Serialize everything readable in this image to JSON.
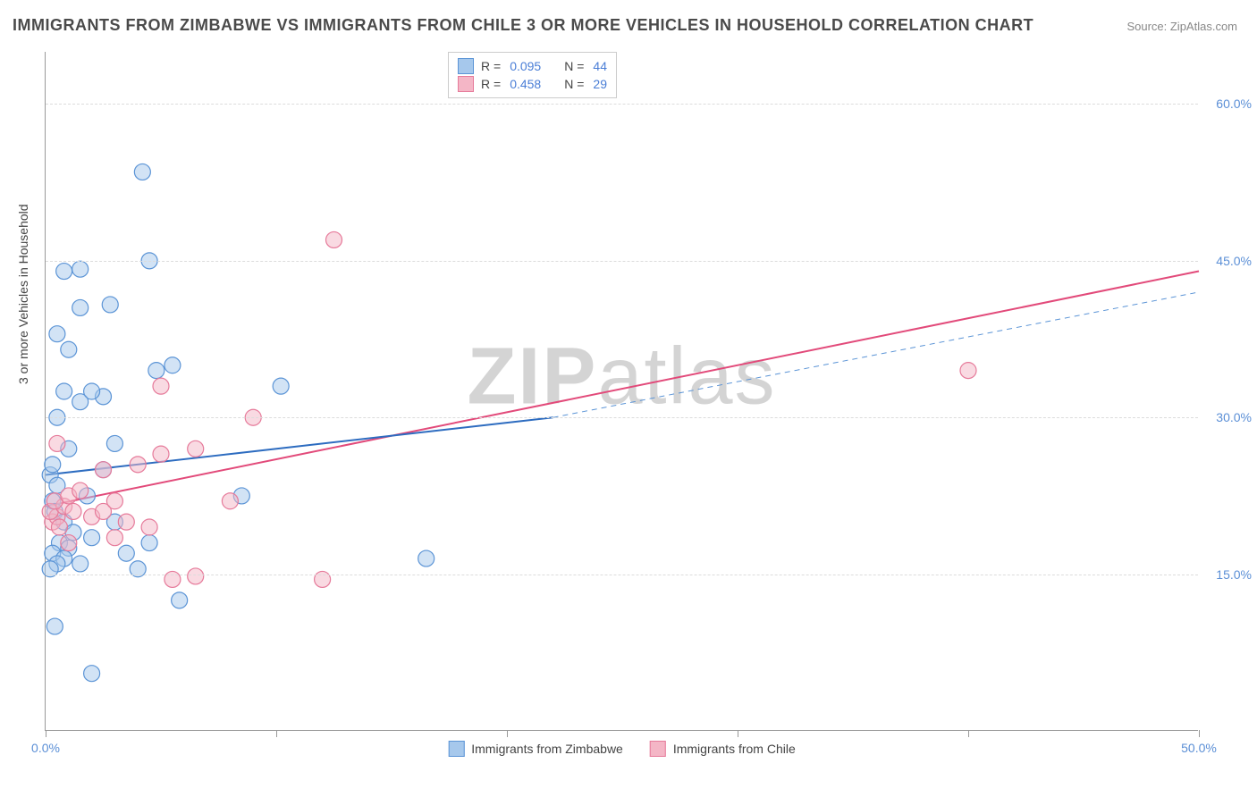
{
  "title": "IMMIGRANTS FROM ZIMBABWE VS IMMIGRANTS FROM CHILE 3 OR MORE VEHICLES IN HOUSEHOLD CORRELATION CHART",
  "source": "Source: ZipAtlas.com",
  "y_axis_label": "3 or more Vehicles in Household",
  "watermark_zip": "ZIP",
  "watermark_atlas": "atlas",
  "chart": {
    "type": "scatter",
    "xlim": [
      0,
      50
    ],
    "ylim": [
      0,
      65
    ],
    "x_ticks": [
      0,
      10,
      20,
      30,
      40,
      50
    ],
    "x_tick_labels": {
      "0": "0.0%",
      "50": "50.0%"
    },
    "y_grid": [
      15,
      30,
      45,
      60
    ],
    "y_tick_labels": {
      "15": "15.0%",
      "30": "30.0%",
      "45": "45.0%",
      "60": "60.0%"
    },
    "background_color": "#ffffff",
    "grid_color": "#dcdcdc",
    "axis_color": "#999999",
    "series": [
      {
        "name": "Immigrants from Zimbabwe",
        "color_fill": "#a6c8ec",
        "color_stroke": "#5b94d6",
        "marker_radius": 9,
        "fill_opacity": 0.5,
        "r_label": "R =",
        "r_value": "0.095",
        "n_label": "N =",
        "n_value": "44",
        "trend_solid": {
          "x1": 0,
          "y1": 24.5,
          "x2": 22,
          "y2": 30,
          "color": "#2d6cc0",
          "width": 2
        },
        "trend_dashed": {
          "x1": 22,
          "y1": 30,
          "x2": 50,
          "y2": 42,
          "color": "#5b94d6",
          "width": 1,
          "dash": "6,5"
        },
        "points": [
          [
            0.2,
            24.5
          ],
          [
            0.5,
            23.5
          ],
          [
            0.3,
            22.0
          ],
          [
            0.4,
            21.0
          ],
          [
            0.8,
            20.0
          ],
          [
            1.2,
            19.0
          ],
          [
            0.6,
            18.0
          ],
          [
            1.0,
            17.5
          ],
          [
            0.3,
            17.0
          ],
          [
            0.8,
            16.5
          ],
          [
            0.5,
            16.0
          ],
          [
            1.5,
            16.0
          ],
          [
            0.2,
            15.5
          ],
          [
            2.0,
            18.5
          ],
          [
            3.5,
            17.0
          ],
          [
            4.5,
            18.0
          ],
          [
            1.8,
            22.5
          ],
          [
            2.5,
            25.0
          ],
          [
            0.3,
            25.5
          ],
          [
            1.0,
            27.0
          ],
          [
            3.0,
            27.5
          ],
          [
            0.5,
            30.0
          ],
          [
            1.5,
            31.5
          ],
          [
            2.5,
            32.0
          ],
          [
            0.8,
            32.5
          ],
          [
            4.8,
            34.5
          ],
          [
            5.5,
            35.0
          ],
          [
            1.0,
            36.5
          ],
          [
            0.5,
            38.0
          ],
          [
            1.5,
            40.5
          ],
          [
            2.8,
            40.8
          ],
          [
            0.8,
            44.0
          ],
          [
            1.5,
            44.2
          ],
          [
            4.5,
            45.0
          ],
          [
            4.2,
            53.5
          ],
          [
            0.4,
            10.0
          ],
          [
            2.0,
            5.5
          ],
          [
            5.8,
            12.5
          ],
          [
            8.5,
            22.5
          ],
          [
            10.2,
            33.0
          ],
          [
            16.5,
            16.5
          ],
          [
            4.0,
            15.5
          ],
          [
            3.0,
            20.0
          ],
          [
            2.0,
            32.5
          ]
        ]
      },
      {
        "name": "Immigrants from Chile",
        "color_fill": "#f4b6c6",
        "color_stroke": "#e67a9a",
        "marker_radius": 9,
        "fill_opacity": 0.5,
        "r_label": "R =",
        "r_value": "0.458",
        "n_label": "N =",
        "n_value": "29",
        "trend_solid": {
          "x1": 0,
          "y1": 21.5,
          "x2": 50,
          "y2": 44,
          "color": "#e24a7a",
          "width": 2
        },
        "points": [
          [
            0.3,
            20.0
          ],
          [
            0.5,
            20.5
          ],
          [
            0.2,
            21.0
          ],
          [
            0.8,
            21.5
          ],
          [
            1.2,
            21.0
          ],
          [
            0.4,
            22.0
          ],
          [
            1.0,
            22.5
          ],
          [
            1.5,
            23.0
          ],
          [
            0.6,
            19.5
          ],
          [
            2.0,
            20.5
          ],
          [
            2.5,
            21.0
          ],
          [
            3.0,
            22.0
          ],
          [
            1.0,
            18.0
          ],
          [
            0.5,
            27.5
          ],
          [
            2.5,
            25.0
          ],
          [
            4.0,
            25.5
          ],
          [
            5.0,
            26.5
          ],
          [
            6.5,
            27.0
          ],
          [
            3.5,
            20.0
          ],
          [
            5.5,
            14.5
          ],
          [
            6.5,
            14.8
          ],
          [
            5.0,
            33.0
          ],
          [
            9.0,
            30.0
          ],
          [
            8.0,
            22.0
          ],
          [
            12.0,
            14.5
          ],
          [
            12.5,
            47.0
          ],
          [
            40.0,
            34.5
          ],
          [
            3.0,
            18.5
          ],
          [
            4.5,
            19.5
          ]
        ]
      }
    ]
  },
  "legend_bottom": [
    {
      "label": "Immigrants from Zimbabwe",
      "fill": "#a6c8ec",
      "stroke": "#5b94d6"
    },
    {
      "label": "Immigrants from Chile",
      "fill": "#f4b6c6",
      "stroke": "#e67a9a"
    }
  ]
}
